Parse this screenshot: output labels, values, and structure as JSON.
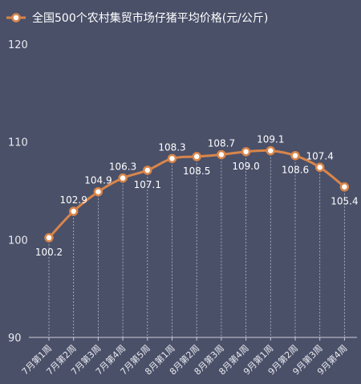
{
  "chart_data": {
    "type": "line",
    "title": "",
    "series": [
      {
        "name": "全国500个农村集贸市场仔猪平均价格(元/公斤)",
        "values": [
          100.2,
          102.9,
          104.9,
          106.3,
          107.1,
          108.3,
          108.5,
          108.7,
          109.0,
          109.1,
          108.6,
          107.4,
          105.4
        ]
      }
    ],
    "categories": [
      "7月第1周",
      "7月第2周",
      "7月第3周",
      "7月第4周",
      "7月第5周",
      "8月第1周",
      "8月第2周",
      "8月第3周",
      "8月第4周",
      "9月第1周",
      "9月第2周",
      "9月第3周",
      "9月第4周"
    ],
    "ylim": [
      90,
      120
    ],
    "yticks": [
      90,
      100,
      110,
      120
    ],
    "xlabel": "",
    "ylabel": "",
    "legend_position": "top-left",
    "grid": "dotted vertical drop lines",
    "colors": {
      "background": "#4a5068",
      "line": "#d9854a",
      "marker_fill": "#ffffff",
      "axis": "#c9ccd8"
    }
  }
}
